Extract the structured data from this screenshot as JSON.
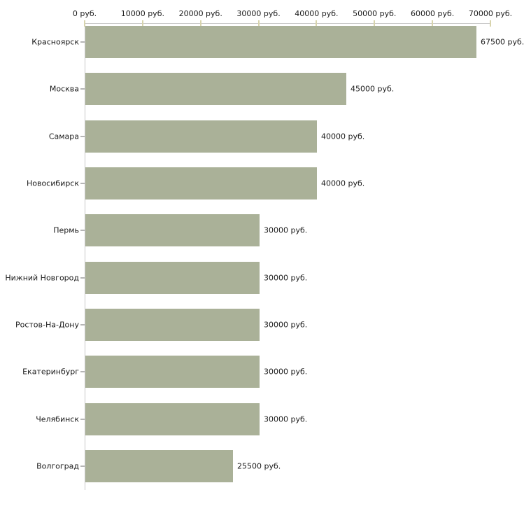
{
  "chart_data": {
    "type": "bar",
    "orientation": "horizontal",
    "title": "",
    "categories": [
      "Красноярск",
      "Москва",
      "Самара",
      "Новосибирск",
      "Пермь",
      "Нижний Новгород",
      "Ростов-На-Дону",
      "Екатеринбург",
      "Челябинск",
      "Волгоград"
    ],
    "values": [
      67500,
      45000,
      40000,
      40000,
      30000,
      30000,
      30000,
      30000,
      30000,
      25500
    ],
    "value_labels": [
      "67500 руб.",
      "45000 руб.",
      "40000 руб.",
      "40000 руб.",
      "30000 руб.",
      "30000 руб.",
      "30000 руб.",
      "30000 руб.",
      "30000 руб.",
      "25500 руб."
    ],
    "x_axis": {
      "position": "top",
      "min": 0,
      "max": 70000,
      "tick_values": [
        0,
        10000,
        20000,
        30000,
        40000,
        50000,
        60000,
        70000
      ],
      "tick_labels": [
        "0 руб.",
        "10000 руб.",
        "20000 руб.",
        "30000 руб.",
        "40000 руб.",
        "50000 руб.",
        "60000 руб.",
        "70000 руб."
      ]
    },
    "grid": false,
    "legend": false,
    "colors": {
      "bar": "#aab198",
      "axis_line": "#c8c8c8",
      "axis_tick_mark": "#d8d4ad",
      "category_tick_mark": "#b5b5b5",
      "text": "#1a1a1a",
      "background": "#ffffff"
    }
  }
}
